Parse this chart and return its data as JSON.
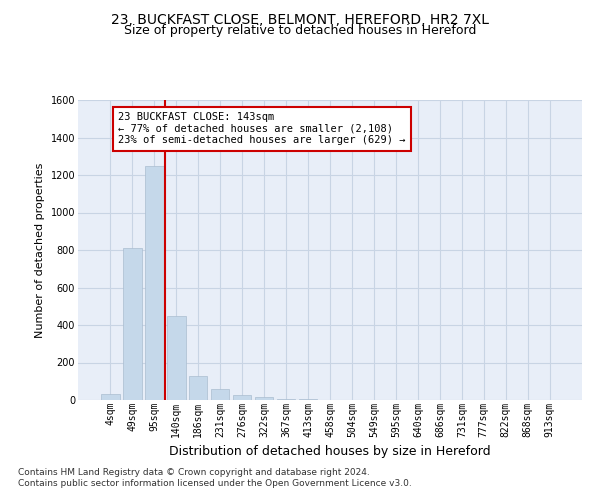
{
  "title_line1": "23, BUCKFAST CLOSE, BELMONT, HEREFORD, HR2 7XL",
  "title_line2": "Size of property relative to detached houses in Hereford",
  "xlabel": "Distribution of detached houses by size in Hereford",
  "ylabel": "Number of detached properties",
  "categories": [
    "4sqm",
    "49sqm",
    "95sqm",
    "140sqm",
    "186sqm",
    "231sqm",
    "276sqm",
    "322sqm",
    "367sqm",
    "413sqm",
    "458sqm",
    "504sqm",
    "549sqm",
    "595sqm",
    "640sqm",
    "686sqm",
    "731sqm",
    "777sqm",
    "822sqm",
    "868sqm",
    "913sqm"
  ],
  "values": [
    30,
    810,
    1250,
    450,
    130,
    60,
    25,
    15,
    8,
    5,
    2,
    0,
    0,
    0,
    0,
    0,
    0,
    0,
    0,
    0,
    0
  ],
  "bar_color": "#c5d8ea",
  "bar_edge_color": "#aabdd0",
  "grid_color": "#c8d4e4",
  "background_color": "#e8eef8",
  "vline_color": "#cc0000",
  "vline_pos": 2.5,
  "annotation_text": "23 BUCKFAST CLOSE: 143sqm\n← 77% of detached houses are smaller (2,108)\n23% of semi-detached houses are larger (629) →",
  "annotation_box_color": "#ffffff",
  "annotation_box_edge": "#cc0000",
  "ylim": [
    0,
    1600
  ],
  "yticks": [
    0,
    200,
    400,
    600,
    800,
    1000,
    1200,
    1400,
    1600
  ],
  "footnote": "Contains HM Land Registry data © Crown copyright and database right 2024.\nContains public sector information licensed under the Open Government Licence v3.0.",
  "title_fontsize": 10,
  "subtitle_fontsize": 9,
  "ylabel_fontsize": 8,
  "xlabel_fontsize": 9,
  "tick_fontsize": 7,
  "annotation_fontsize": 7.5,
  "footnote_fontsize": 6.5
}
